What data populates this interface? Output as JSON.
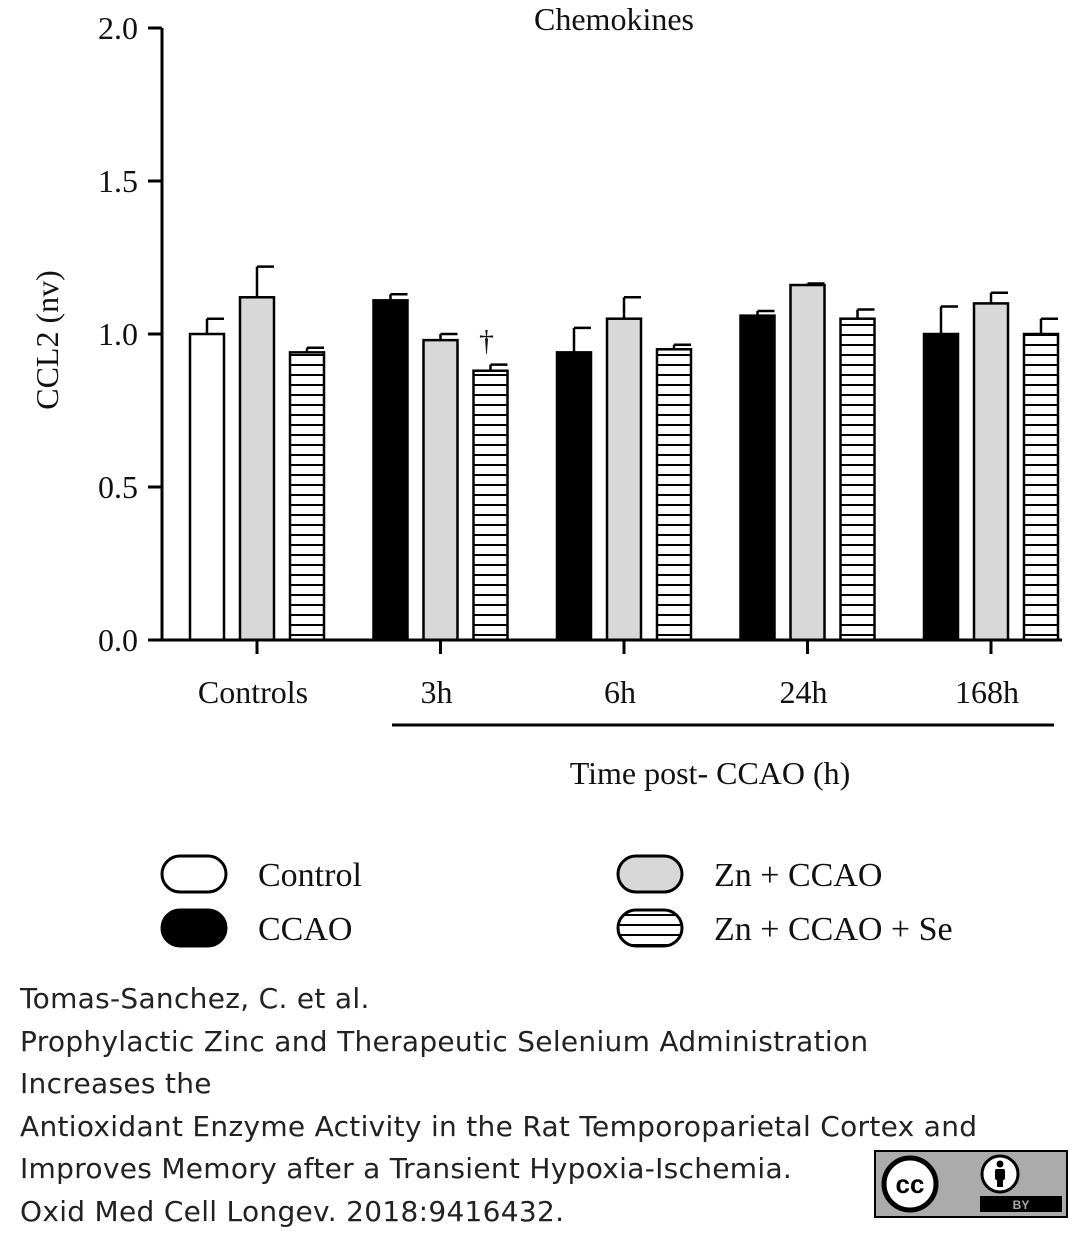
{
  "chart_data": {
    "type": "bar",
    "title": "Chemokines",
    "ylabel": "CCL2 (nv)",
    "xlabel": "Time post- CCAO (h)",
    "ylim": [
      0,
      2.0
    ],
    "yticks": [
      "0.0",
      "0.5",
      "1.0",
      "1.5",
      "2.0"
    ],
    "groups": [
      {
        "label": "Controls",
        "bars": [
          {
            "series": "Control",
            "value": 1.0,
            "error": 0.05
          },
          {
            "series": "Zn + CCAO",
            "value": 1.12,
            "error": 0.1
          },
          {
            "series": "Zn + CCAO + Se",
            "value": 0.94,
            "error": 0.015
          }
        ]
      },
      {
        "label": "3h",
        "bars": [
          {
            "series": "CCAO",
            "value": 1.11,
            "error": 0.02
          },
          {
            "series": "Zn + CCAO",
            "value": 0.98,
            "error": 0.02
          },
          {
            "series": "Zn + CCAO + Se",
            "value": 0.88,
            "error": 0.02
          }
        ]
      },
      {
        "label": "6h",
        "bars": [
          {
            "series": "CCAO",
            "value": 0.94,
            "error": 0.08
          },
          {
            "series": "Zn + CCAO",
            "value": 1.05,
            "error": 0.07
          },
          {
            "series": "Zn + CCAO + Se",
            "value": 0.95,
            "error": 0.015
          }
        ]
      },
      {
        "label": "24h",
        "bars": [
          {
            "series": "CCAO",
            "value": 1.06,
            "error": 0.015
          },
          {
            "series": "Zn + CCAO",
            "value": 1.16,
            "error": 0.005
          },
          {
            "series": "Zn + CCAO + Se",
            "value": 1.05,
            "error": 0.03
          }
        ]
      },
      {
        "label": "168h",
        "bars": [
          {
            "series": "CCAO",
            "value": 1.0,
            "error": 0.09
          },
          {
            "series": "Zn + CCAO",
            "value": 1.1,
            "error": 0.035
          },
          {
            "series": "Zn + CCAO + Se",
            "value": 1.0,
            "error": 0.05
          }
        ]
      }
    ],
    "annotations": [
      {
        "group": "3h",
        "series": "Zn + CCAO + Se",
        "text": "†"
      }
    ],
    "legend": {
      "placement": "bottom",
      "items": [
        {
          "label": "Control",
          "style": "white"
        },
        {
          "label": "Zn + CCAO",
          "style": "gray"
        },
        {
          "label": "CCAO",
          "style": "black"
        },
        {
          "label": "Zn + CCAO + Se",
          "style": "striped"
        }
      ]
    }
  },
  "colors": {
    "control": "#ffffff",
    "ccao": "#000000",
    "zn_ccao": "#d8d8d8",
    "stripe": "#000000",
    "badge": "#ababab"
  },
  "citation": {
    "lines": [
      "Tomas-Sanchez, C. et al.",
      "Prophylactic Zinc and Therapeutic Selenium Administration",
      "Increases the",
      "Antioxidant Enzyme Activity in the Rat Temporoparietal Cortex and",
      "Improves Memory after a Transient Hypoxia-Ischemia.",
      "Oxid Med Cell Longev. 2018:9416432."
    ]
  },
  "license_badge": {
    "cc_text": "cc",
    "by_text": "BY",
    "icons": [
      "cc-icon",
      "person-icon"
    ]
  }
}
